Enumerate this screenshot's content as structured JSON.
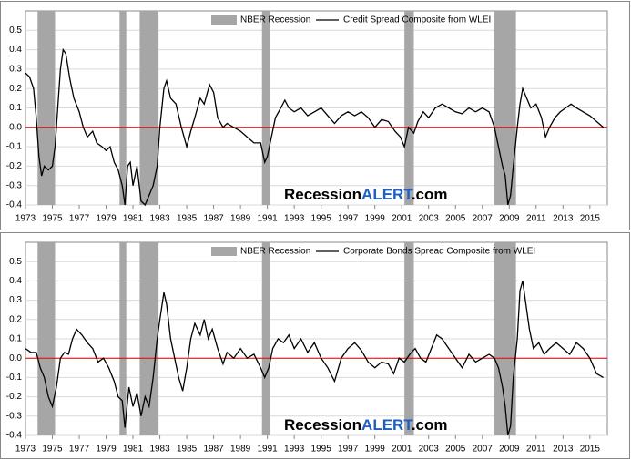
{
  "chart_data": [
    {
      "type": "line",
      "recessions": {
        "name": "NBER Recession",
        "color": "#a6a6a6",
        "periods": [
          [
            1973.9,
            1975.2
          ],
          [
            1980.0,
            1980.5
          ],
          [
            1981.5,
            1982.9
          ],
          [
            1990.6,
            1991.2
          ],
          [
            2001.2,
            2001.9
          ],
          [
            2007.9,
            2009.5
          ]
        ]
      },
      "x": [
        1973.0,
        1973.3,
        1973.6,
        1973.8,
        1974.0,
        1974.2,
        1974.4,
        1974.7,
        1975.0,
        1975.2,
        1975.4,
        1975.6,
        1975.8,
        1976.0,
        1976.3,
        1976.6,
        1977.0,
        1977.3,
        1977.6,
        1978.0,
        1978.3,
        1978.7,
        1979.0,
        1979.3,
        1979.6,
        1979.9,
        1980.2,
        1980.4,
        1980.6,
        1980.8,
        1981.0,
        1981.3,
        1981.6,
        1981.9,
        1982.2,
        1982.5,
        1982.8,
        1983.0,
        1983.3,
        1983.5,
        1983.8,
        1984.2,
        1984.6,
        1985.0,
        1985.3,
        1985.6,
        1986.0,
        1986.3,
        1986.7,
        1987.0,
        1987.3,
        1987.7,
        1988.0,
        1988.5,
        1989.0,
        1989.5,
        1990.0,
        1990.5,
        1990.8,
        1991.0,
        1991.3,
        1991.6,
        1992.0,
        1992.3,
        1992.6,
        1993.0,
        1993.5,
        1994.0,
        1994.5,
        1995.0,
        1995.5,
        1996.0,
        1996.5,
        1997.0,
        1997.5,
        1998.0,
        1998.5,
        1999.0,
        1999.5,
        2000.0,
        2000.5,
        2000.9,
        2001.2,
        2001.5,
        2001.9,
        2002.2,
        2002.6,
        2003.0,
        2003.5,
        2004.0,
        2004.5,
        2005.0,
        2005.5,
        2006.0,
        2006.5,
        2007.0,
        2007.5,
        2007.9,
        2008.2,
        2008.5,
        2008.7,
        2008.9,
        2009.1,
        2009.3,
        2009.6,
        2009.8,
        2010.0,
        2010.3,
        2010.6,
        2011.0,
        2011.4,
        2011.7,
        2012.0,
        2012.4,
        2012.8,
        2013.2,
        2013.6,
        2014.0,
        2014.5,
        2015.0,
        2015.5,
        2016.0
      ],
      "series": [
        {
          "name": "Credit Spread Composite from WLEI",
          "color": "#000000",
          "values": [
            0.28,
            0.26,
            0.2,
            0.05,
            -0.15,
            -0.25,
            -0.2,
            -0.22,
            -0.2,
            -0.1,
            0.1,
            0.3,
            0.4,
            0.38,
            0.25,
            0.15,
            0.08,
            0.0,
            -0.05,
            -0.02,
            -0.08,
            -0.1,
            -0.12,
            -0.1,
            -0.18,
            -0.22,
            -0.3,
            -0.4,
            -0.2,
            -0.18,
            -0.3,
            -0.2,
            -0.38,
            -0.4,
            -0.35,
            -0.3,
            -0.2,
            0.0,
            0.2,
            0.24,
            0.15,
            0.12,
            0.0,
            -0.1,
            -0.02,
            0.05,
            0.15,
            0.12,
            0.22,
            0.18,
            0.05,
            0.0,
            0.02,
            0.0,
            -0.02,
            -0.05,
            -0.08,
            -0.08,
            -0.18,
            -0.15,
            -0.05,
            0.05,
            0.1,
            0.14,
            0.1,
            0.08,
            0.1,
            0.06,
            0.08,
            0.1,
            0.06,
            0.02,
            0.06,
            0.08,
            0.06,
            0.08,
            0.05,
            0.0,
            0.04,
            0.03,
            -0.02,
            -0.05,
            -0.1,
            0.0,
            -0.03,
            0.03,
            0.08,
            0.05,
            0.1,
            0.12,
            0.1,
            0.08,
            0.07,
            0.1,
            0.08,
            0.1,
            0.08,
            0.0,
            -0.1,
            -0.2,
            -0.25,
            -0.4,
            -0.35,
            -0.2,
            0.0,
            0.12,
            0.2,
            0.15,
            0.1,
            0.12,
            0.05,
            -0.05,
            0.0,
            0.05,
            0.08,
            0.1,
            0.12,
            0.1,
            0.08,
            0.06,
            0.03,
            0.0
          ]
        }
      ],
      "xlim": [
        1973,
        2016.3
      ],
      "xticks": [
        1973,
        1975,
        1977,
        1979,
        1981,
        1983,
        1985,
        1987,
        1989,
        1991,
        1993,
        1995,
        1997,
        1999,
        2001,
        2003,
        2005,
        2007,
        2009,
        2011,
        2013,
        2015
      ],
      "ylim": [
        -0.4,
        0.6
      ],
      "yticks": [
        0.5,
        0.4,
        0.3,
        0.2,
        0.1,
        {
          "value": 0,
          "label": "0.0"
        },
        -0.1,
        -0.2,
        -0.3,
        -0.4
      ],
      "grid": true,
      "reference_line": 0,
      "reference_color": "#e00000",
      "watermark": [
        "Recession",
        "ALERT",
        ".com"
      ],
      "watermark_color": "#1f5fbf"
    },
    {
      "type": "line",
      "recessions": {
        "name": "NBER Recession",
        "color": "#a6a6a6",
        "periods": [
          [
            1973.9,
            1975.2
          ],
          [
            1980.0,
            1980.5
          ],
          [
            1981.5,
            1982.9
          ],
          [
            1990.6,
            1991.2
          ],
          [
            2001.2,
            2001.9
          ],
          [
            2007.9,
            2009.5
          ]
        ]
      },
      "x": [
        1973.0,
        1973.4,
        1973.8,
        1974.1,
        1974.4,
        1974.7,
        1975.0,
        1975.3,
        1975.6,
        1975.9,
        1976.2,
        1976.5,
        1976.8,
        1977.2,
        1977.6,
        1978.0,
        1978.4,
        1978.8,
        1979.2,
        1979.6,
        1979.9,
        1980.2,
        1980.4,
        1980.7,
        1981.0,
        1981.3,
        1981.6,
        1981.9,
        1982.2,
        1982.5,
        1982.8,
        1983.0,
        1983.3,
        1983.5,
        1983.8,
        1984.1,
        1984.4,
        1984.7,
        1985.0,
        1985.3,
        1985.6,
        1986.0,
        1986.3,
        1986.6,
        1986.9,
        1987.3,
        1987.7,
        1988.0,
        1988.5,
        1989.0,
        1989.5,
        1990.0,
        1990.5,
        1990.8,
        1991.1,
        1991.4,
        1991.8,
        1992.2,
        1992.6,
        1993.0,
        1993.5,
        1994.0,
        1994.5,
        1995.0,
        1995.5,
        1996.0,
        1996.5,
        1997.0,
        1997.5,
        1998.0,
        1998.5,
        1999.0,
        1999.5,
        2000.0,
        2000.4,
        2000.8,
        2001.2,
        2001.6,
        2002.0,
        2002.4,
        2002.8,
        2003.2,
        2003.6,
        2004.0,
        2004.5,
        2005.0,
        2005.5,
        2006.0,
        2006.5,
        2007.0,
        2007.5,
        2007.9,
        2008.2,
        2008.5,
        2008.7,
        2008.9,
        2009.1,
        2009.3,
        2009.6,
        2009.8,
        2010.0,
        2010.2,
        2010.5,
        2010.8,
        2011.2,
        2011.6,
        2012.0,
        2012.5,
        2013.0,
        2013.5,
        2014.0,
        2014.5,
        2015.0,
        2015.5,
        2016.0
      ],
      "series": [
        {
          "name": "Corporate Bonds Spread Composite from WLEI",
          "color": "#000000",
          "values": [
            0.05,
            0.03,
            0.03,
            -0.05,
            -0.1,
            -0.2,
            -0.25,
            -0.15,
            0.0,
            0.03,
            0.02,
            0.1,
            0.15,
            0.12,
            0.08,
            0.05,
            -0.02,
            0.0,
            -0.05,
            -0.12,
            -0.2,
            -0.22,
            -0.36,
            -0.15,
            -0.25,
            -0.18,
            -0.3,
            -0.2,
            -0.25,
            -0.1,
            0.1,
            0.2,
            0.34,
            0.28,
            0.1,
            0.0,
            -0.1,
            -0.17,
            -0.05,
            0.1,
            0.18,
            0.12,
            0.2,
            0.1,
            0.15,
            0.05,
            -0.03,
            0.03,
            0.0,
            0.05,
            0.0,
            0.02,
            -0.05,
            -0.1,
            -0.05,
            0.05,
            0.1,
            0.08,
            0.12,
            0.05,
            0.1,
            0.03,
            0.08,
            0.0,
            -0.05,
            -0.12,
            0.0,
            0.05,
            0.08,
            0.04,
            -0.02,
            -0.05,
            -0.02,
            -0.03,
            -0.08,
            0.0,
            -0.02,
            0.02,
            0.05,
            0.0,
            -0.02,
            0.05,
            0.12,
            0.1,
            0.05,
            0.0,
            -0.05,
            0.02,
            -0.02,
            0.0,
            0.02,
            0.0,
            -0.05,
            -0.15,
            -0.25,
            -0.4,
            -0.35,
            -0.1,
            0.1,
            0.35,
            0.4,
            0.3,
            0.15,
            0.05,
            0.08,
            0.02,
            0.05,
            0.08,
            0.05,
            0.02,
            0.08,
            0.05,
            0.0,
            -0.08,
            -0.1
          ]
        }
      ],
      "xlim": [
        1973,
        2016.3
      ],
      "xticks": [
        1973,
        1975,
        1977,
        1979,
        1981,
        1983,
        1985,
        1987,
        1989,
        1991,
        1993,
        1995,
        1997,
        1999,
        2001,
        2003,
        2005,
        2007,
        2009,
        2011,
        2013,
        2015
      ],
      "ylim": [
        -0.4,
        0.6
      ],
      "yticks": [
        0.5,
        0.4,
        0.3,
        0.2,
        0.1,
        {
          "value": 0,
          "label": "0.0"
        },
        -0.1,
        -0.2,
        -0.3,
        -0.4
      ],
      "grid": true,
      "reference_line": 0,
      "reference_color": "#e00000",
      "watermark": [
        "Recession",
        "ALERT",
        ".com"
      ],
      "watermark_color": "#1f5fbf"
    }
  ]
}
